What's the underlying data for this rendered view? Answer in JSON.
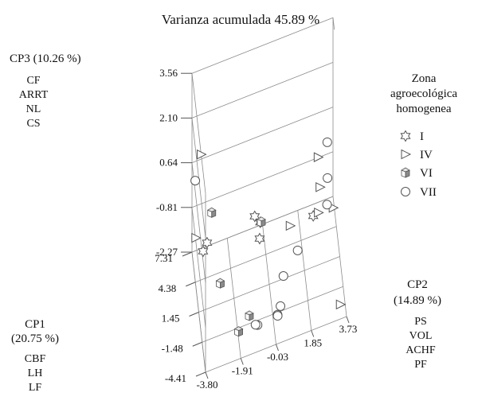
{
  "chart_data": {
    "type": "scatter",
    "title": "Varianza acumulada 45.89 %",
    "axes": {
      "cp1": {
        "label": "CP1",
        "variance": "(20.75 %)",
        "variables": [
          "CBF",
          "LH",
          "LF"
        ],
        "ticks": [
          "7.31",
          "4.38",
          "1.45",
          "-1.48",
          "-4.41"
        ]
      },
      "cp2": {
        "label": "CP2",
        "variance": "(14.89 %)",
        "variables": [
          "PS",
          "VOL",
          "ACHF",
          "PF"
        ],
        "ticks": [
          "-3.80",
          "-1.91",
          "-0.03",
          "1.85",
          "3.73"
        ]
      },
      "cp3": {
        "label": "CP3 (10.26 %)",
        "variables": [
          "CF",
          "ARRT",
          "NL",
          "CS"
        ],
        "ticks": [
          "3.56",
          "2.10",
          "0.64",
          "-0.81",
          "-2.27"
        ]
      }
    },
    "legend": {
      "title": "Zona agroecológica homogenea",
      "position": "right",
      "entries": [
        {
          "label": "I",
          "marker": "star"
        },
        {
          "label": "IV",
          "marker": "triangle"
        },
        {
          "label": "VI",
          "marker": "cube"
        },
        {
          "label": "VII",
          "marker": "circle"
        }
      ]
    },
    "series": [
      {
        "name": "I",
        "marker": "star",
        "points": [
          {
            "x": -1.6,
            "y": -1.0,
            "z": 1.2
          },
          {
            "x": -1.5,
            "y": -0.7,
            "z": 0.9
          },
          {
            "x": -1.0,
            "y": -0.7,
            "z": 0.2
          },
          {
            "x": -2.0,
            "y": 2.1,
            "z": 0.6
          },
          {
            "x": 4.0,
            "y": -3.2,
            "z": -1.0
          },
          {
            "x": 4.2,
            "y": -3.4,
            "z": -1.3
          }
        ]
      },
      {
        "name": "IV",
        "marker": "triangle",
        "points": [
          {
            "x": 1.0,
            "y": -3.7,
            "z": 3.0
          },
          {
            "x": -3.0,
            "y": 2.3,
            "z": 2.8
          },
          {
            "x": -3.0,
            "y": 2.4,
            "z": 1.8
          },
          {
            "x": -1.5,
            "y": 0.9,
            "z": 0.4
          },
          {
            "x": -1.6,
            "y": 2.4,
            "z": 0.5
          },
          {
            "x": -1.4,
            "y": 3.2,
            "z": 0.4
          },
          {
            "x": 4.0,
            "y": -3.8,
            "z": -0.7
          },
          {
            "x": -4.4,
            "y": 3.4,
            "z": -1.8
          }
        ]
      },
      {
        "name": "VI",
        "marker": "cube",
        "points": [
          {
            "x": 3.2,
            "y": -3.0,
            "z": 0.2
          },
          {
            "x": 0.8,
            "y": -0.5,
            "z": 0.1
          },
          {
            "x": 2.3,
            "y": -2.6,
            "z": -1.9
          },
          {
            "x": -1.8,
            "y": -1.3,
            "z": -1.9
          },
          {
            "x": -2.3,
            "y": -1.9,
            "z": -2.1
          }
        ]
      },
      {
        "name": "VII",
        "marker": "circle",
        "points": [
          {
            "x": 4.5,
            "y": -3.8,
            "z": 1.0
          },
          {
            "x": -2.8,
            "y": 2.8,
            "z": 3.1
          },
          {
            "x": -3.0,
            "y": 2.8,
            "z": 2.0
          },
          {
            "x": -2.6,
            "y": 2.8,
            "z": 1.0
          },
          {
            "x": -1.5,
            "y": 1.3,
            "z": -0.5
          },
          {
            "x": -0.5,
            "y": 0.6,
            "z": -1.5
          },
          {
            "x": -1.9,
            "y": 0.2,
            "z": -2.2
          },
          {
            "x": -2.4,
            "y": -0.9,
            "z": -2.1
          },
          {
            "x": -2.3,
            "y": -1.0,
            "z": -2.1
          },
          {
            "x": -1.2,
            "y": 0.4,
            "z": -2.2
          },
          {
            "x": -2.0,
            "y": 0.2,
            "z": -2.2
          }
        ]
      }
    ],
    "colors": {
      "marker_stroke": "#555555",
      "cube_fill": "#8a8a8a",
      "grid": "#8c8c8c"
    }
  }
}
